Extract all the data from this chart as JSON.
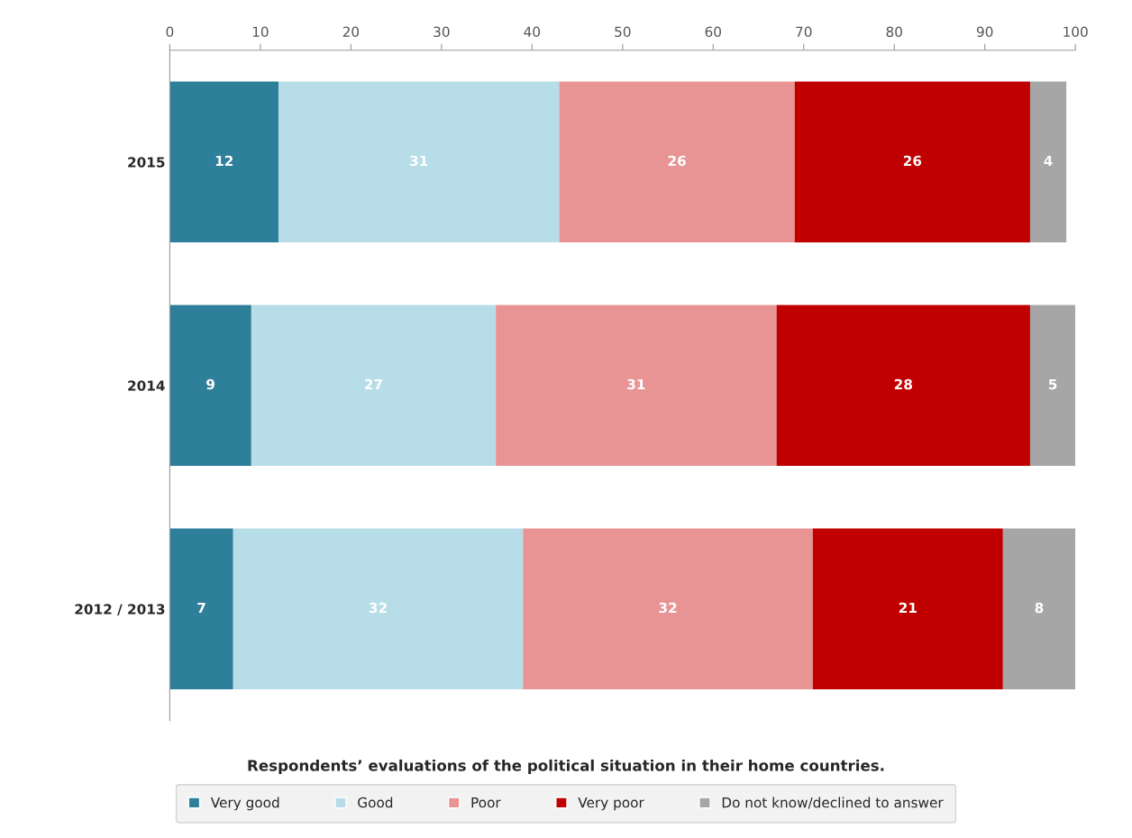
{
  "chart_data": {
    "type": "bar",
    "orientation": "horizontal",
    "stacked": true,
    "title": "Respondents’ evaluations of the political situation in their home countries.",
    "categories": [
      "2015",
      "2014",
      "2012 / 2013"
    ],
    "series": [
      {
        "name": "Very good",
        "color": "#2e7f99",
        "values": [
          12,
          9,
          7
        ]
      },
      {
        "name": "Good",
        "color": "#b7dde8",
        "values": [
          31,
          27,
          32
        ]
      },
      {
        "name": "Poor",
        "color": "#e89494",
        "values": [
          26,
          31,
          32
        ]
      },
      {
        "name": "Very poor",
        "color": "#c00000",
        "values": [
          26,
          28,
          21
        ]
      },
      {
        "name": "Do not know/declined to answer",
        "color": "#a6a6a6",
        "values": [
          4,
          5,
          8
        ]
      }
    ],
    "xlim": [
      0,
      100
    ],
    "xticks": [
      0,
      10,
      20,
      30,
      40,
      50,
      60,
      70,
      80,
      90,
      100
    ],
    "data_labels": true,
    "grid": false,
    "legend": "bottom"
  }
}
